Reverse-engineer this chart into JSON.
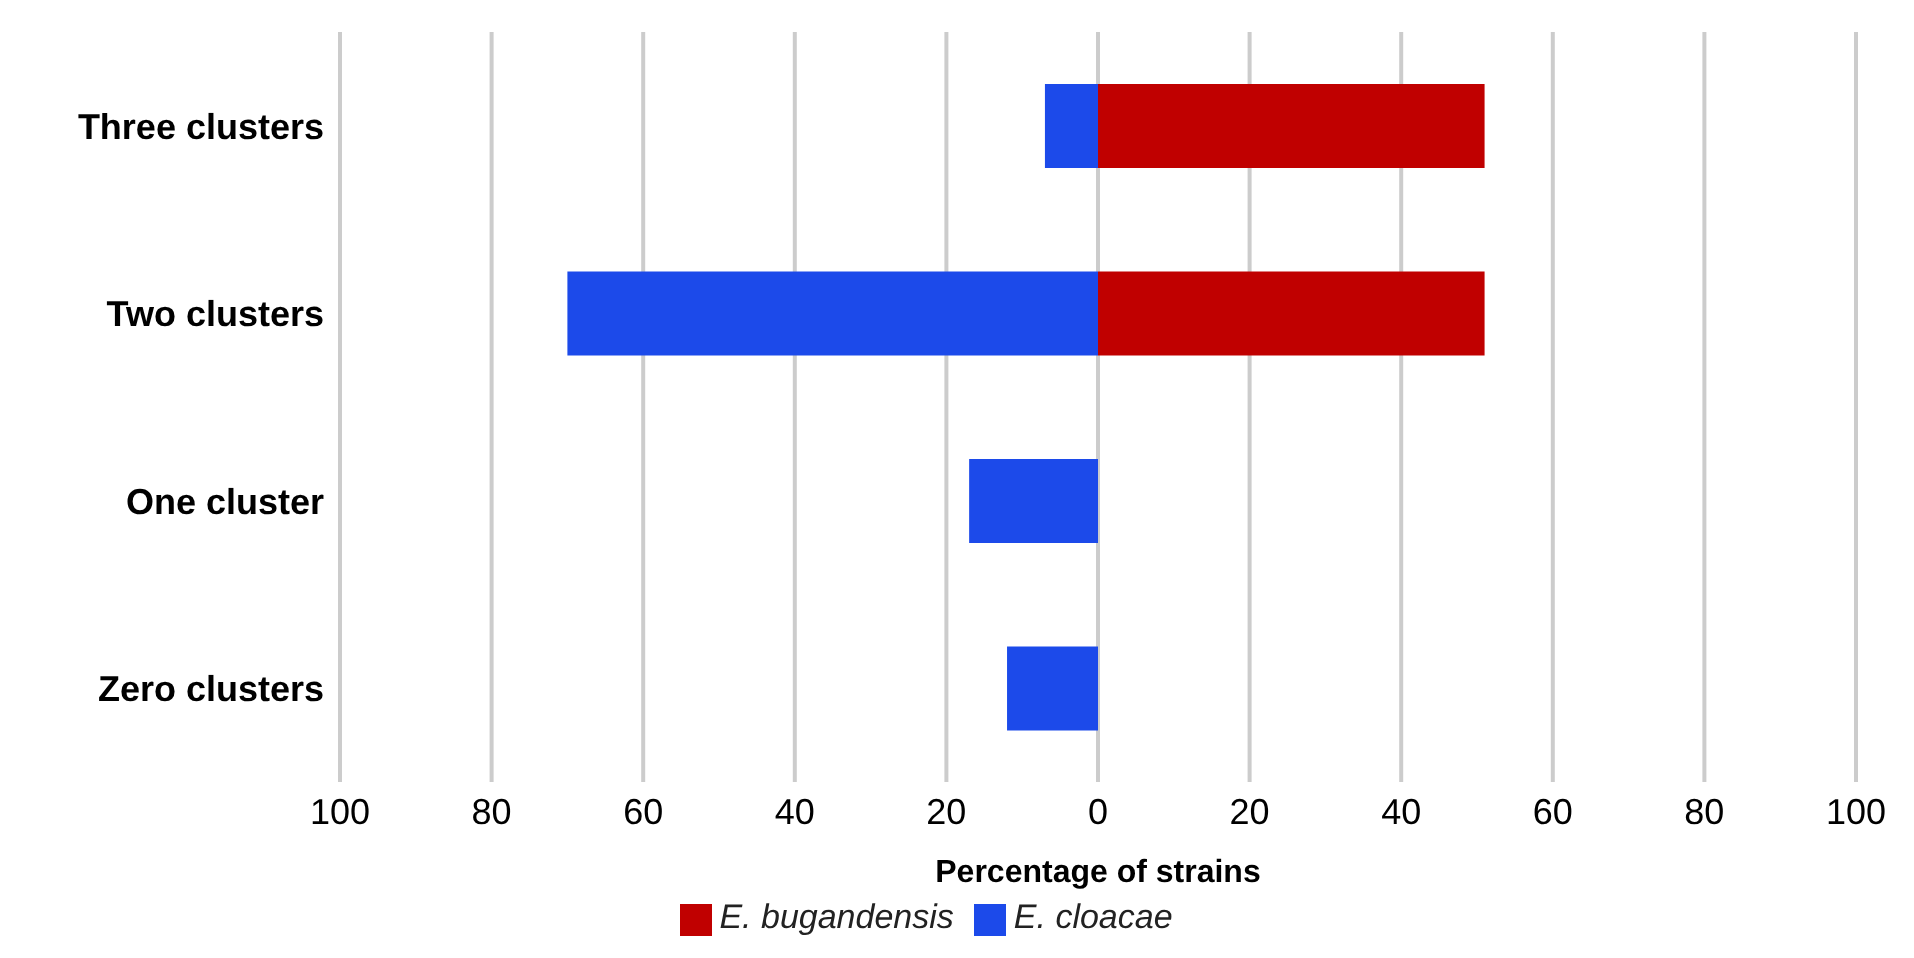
{
  "chart_data": {
    "type": "bar",
    "orientation": "horizontal",
    "stacked": true,
    "xlabel": "Percentage of strains",
    "categories": [
      "Three clusters",
      "Two clusters",
      "One cluster",
      "Zero clusters"
    ],
    "series": [
      {
        "name": "E. cloacae",
        "color": "#1c4aea",
        "values": [
          -7,
          -70,
          -17,
          -12
        ]
      },
      {
        "name": "E. bugandensis",
        "color": "#c00000",
        "values": [
          51,
          51,
          null,
          null
        ]
      }
    ],
    "xlim": [
      -100,
      100
    ],
    "xticks": [
      {
        "value": -100,
        "label": "100"
      },
      {
        "value": -80,
        "label": "80"
      },
      {
        "value": -60,
        "label": "60"
      },
      {
        "value": -40,
        "label": "40"
      },
      {
        "value": -20,
        "label": "20"
      },
      0,
      20,
      40,
      60,
      80,
      100
    ],
    "grid": "x",
    "legend": "bottom"
  }
}
